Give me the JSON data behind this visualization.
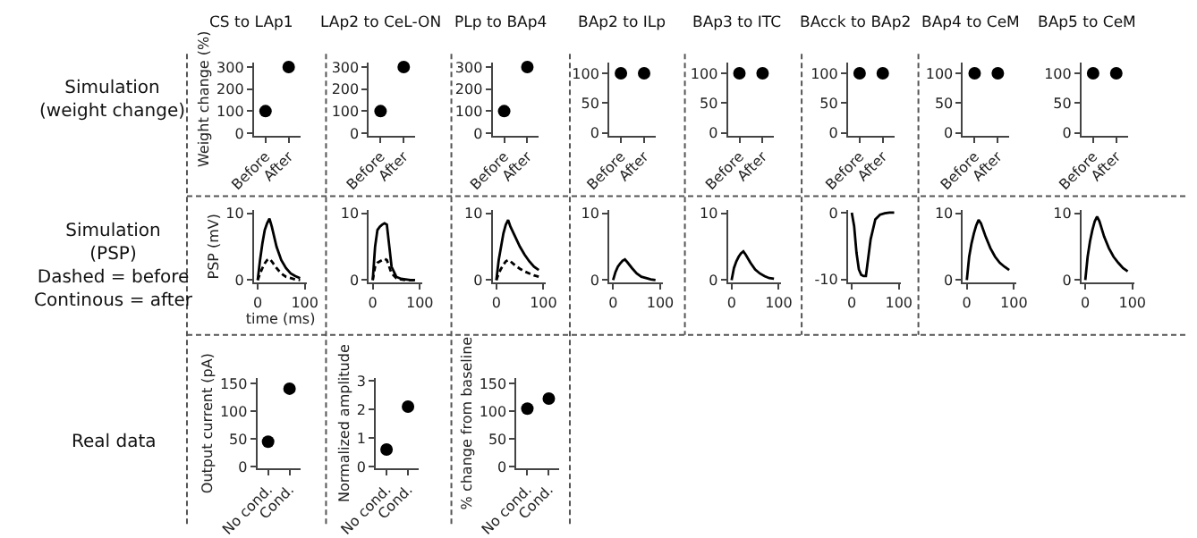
{
  "chart_data": [
    {
      "type": "scatter",
      "title": "CS to LAp1",
      "ylabel": "Weight change (%)",
      "annotations": [
        "Simulation\n(weight change)"
      ],
      "categories": [
        "Before",
        "After"
      ],
      "values": [
        100,
        300
      ],
      "color": "#000000",
      "marker": "circle",
      "ylim": [
        -10,
        320
      ],
      "yticks": [
        0,
        100,
        200,
        300
      ]
    },
    {
      "type": "scatter",
      "title": "LAp2 to CeL-ON",
      "categories": [
        "Before",
        "After"
      ],
      "values": [
        100,
        300
      ],
      "color": "#000000",
      "marker": "circle",
      "ylim": [
        -10,
        320
      ],
      "yticks": [
        0,
        100,
        200,
        300
      ]
    },
    {
      "type": "scatter",
      "title": "PLp to BAp4",
      "categories": [
        "Before",
        "After"
      ],
      "values": [
        100,
        300
      ],
      "color": "#000000",
      "marker": "circle",
      "ylim": [
        -10,
        320
      ],
      "yticks": [
        0,
        100,
        200,
        300
      ]
    },
    {
      "type": "scatter",
      "title": "BAp2 to ILp",
      "categories": [
        "Before",
        "After"
      ],
      "values": [
        100,
        100
      ],
      "color": "#000000",
      "marker": "circle",
      "ylim": [
        -4,
        118
      ],
      "yticks": [
        0,
        50,
        100
      ]
    },
    {
      "type": "scatter",
      "title": "BAp3 to ITC",
      "categories": [
        "Before",
        "After"
      ],
      "values": [
        100,
        100
      ],
      "color": "#000000",
      "marker": "circle",
      "ylim": [
        -4,
        118
      ],
      "yticks": [
        0,
        50,
        100
      ]
    },
    {
      "type": "scatter",
      "title": "BAcck to BAp2",
      "categories": [
        "Before",
        "After"
      ],
      "values": [
        100,
        100
      ],
      "color": "#000000",
      "marker": "circle",
      "ylim": [
        -4,
        118
      ],
      "yticks": [
        0,
        50,
        100
      ]
    },
    {
      "type": "scatter",
      "title": "BAp4 to CeM",
      "categories": [
        "Before",
        "After"
      ],
      "values": [
        100,
        100
      ],
      "color": "#000000",
      "marker": "circle",
      "ylim": [
        -4,
        118
      ],
      "yticks": [
        0,
        50,
        100
      ]
    },
    {
      "type": "scatter",
      "title": "BAp5 to CeM",
      "categories": [
        "Before",
        "After"
      ],
      "values": [
        100,
        100
      ],
      "color": "#000000",
      "marker": "circle",
      "ylim": [
        -4,
        118
      ],
      "yticks": [
        0,
        50,
        100
      ]
    },
    {
      "type": "line",
      "ylabel": "PSP (mV)",
      "xlabel": "time (ms)",
      "annotations": [
        "Simulation\n(PSP)\nDashed = before\nContinous = after"
      ],
      "x": [
        0,
        5,
        10,
        15,
        20,
        25,
        30,
        40,
        50,
        60,
        70,
        80,
        90
      ],
      "xlim": [
        -8,
        105
      ],
      "xticks": [
        0,
        100
      ],
      "ylim": [
        -0.4,
        10.5
      ],
      "yticks": [
        0,
        10
      ],
      "series": [
        {
          "color": "#000000",
          "line_style": "solid",
          "values": [
            0,
            3,
            5.5,
            7.5,
            8.5,
            9.2,
            8,
            5,
            3,
            1.8,
            1,
            0.6,
            0.3
          ]
        },
        {
          "color": "#000000",
          "line_style": "dashed",
          "values": [
            0,
            1,
            1.8,
            2.5,
            3,
            3.2,
            2.8,
            1.8,
            1,
            0.5,
            0.3,
            0.1,
            0
          ]
        }
      ]
    },
    {
      "type": "line",
      "x": [
        0,
        5,
        10,
        15,
        20,
        25,
        30,
        40,
        50,
        60,
        70,
        80,
        90
      ],
      "xlim": [
        -8,
        105
      ],
      "xticks": [
        0,
        100
      ],
      "ylim": [
        -0.4,
        10.5
      ],
      "yticks": [
        0,
        10
      ],
      "series": [
        {
          "color": "#000000",
          "line_style": "solid",
          "values": [
            0,
            5,
            7.5,
            8,
            8.3,
            8.5,
            8.3,
            2,
            0.5,
            0.2,
            0.1,
            0,
            0
          ]
        },
        {
          "color": "#000000",
          "line_style": "dashed",
          "values": [
            0,
            2,
            2.6,
            2.8,
            3,
            3.2,
            3,
            1,
            0.3,
            0.1,
            0,
            0,
            0
          ]
        }
      ]
    },
    {
      "type": "line",
      "x": [
        0,
        5,
        10,
        15,
        20,
        25,
        30,
        40,
        50,
        60,
        70,
        80,
        90
      ],
      "xlim": [
        -8,
        105
      ],
      "xticks": [
        0,
        100
      ],
      "ylim": [
        -0.4,
        10.5
      ],
      "yticks": [
        0,
        10
      ],
      "series": [
        {
          "color": "#000000",
          "line_style": "solid",
          "values": [
            0,
            3,
            5,
            7,
            8.3,
            9,
            8,
            6.5,
            5,
            3.8,
            2.8,
            2,
            1.5
          ]
        },
        {
          "color": "#000000",
          "line_style": "dashed",
          "values": [
            0,
            1,
            1.7,
            2.3,
            2.8,
            3,
            2.8,
            2.2,
            1.7,
            1.3,
            1,
            0.7,
            0.5
          ]
        }
      ]
    },
    {
      "type": "line",
      "x": [
        0,
        5,
        10,
        15,
        20,
        25,
        30,
        40,
        50,
        60,
        70,
        80,
        90
      ],
      "xlim": [
        -8,
        105
      ],
      "xticks": [
        0,
        100
      ],
      "ylim": [
        -0.4,
        10.5
      ],
      "yticks": [
        0,
        10
      ],
      "series": [
        {
          "color": "#000000",
          "line_style": "solid",
          "values": [
            0,
            1.2,
            2,
            2.5,
            2.9,
            3.1,
            2.7,
            1.8,
            1,
            0.5,
            0.3,
            0.1,
            0
          ]
        }
      ]
    },
    {
      "type": "line",
      "x": [
        0,
        5,
        10,
        15,
        20,
        25,
        30,
        40,
        50,
        60,
        70,
        80,
        90
      ],
      "xlim": [
        -8,
        105
      ],
      "xticks": [
        0,
        100
      ],
      "ylim": [
        -0.4,
        10.5
      ],
      "yticks": [
        0,
        10
      ],
      "series": [
        {
          "color": "#000000",
          "line_style": "solid",
          "values": [
            0,
            1.8,
            2.8,
            3.5,
            4,
            4.3,
            3.8,
            2.6,
            1.6,
            1,
            0.6,
            0.3,
            0.2
          ]
        }
      ]
    },
    {
      "type": "line",
      "x": [
        0,
        5,
        10,
        15,
        20,
        25,
        30,
        40,
        50,
        60,
        70,
        80,
        90
      ],
      "xlim": [
        -8,
        105
      ],
      "xticks": [
        0,
        100
      ],
      "ylim": [
        -10.5,
        0.4
      ],
      "yticks": [
        -10,
        0
      ],
      "series": [
        {
          "color": "#000000",
          "line_style": "solid",
          "values": [
            0,
            -2,
            -6,
            -8.5,
            -9.3,
            -9.5,
            -9.5,
            -4,
            -1,
            -0.3,
            -0.1,
            0,
            0
          ]
        }
      ]
    },
    {
      "type": "line",
      "x": [
        0,
        5,
        10,
        15,
        20,
        25,
        30,
        40,
        50,
        60,
        70,
        80,
        90
      ],
      "xlim": [
        -8,
        105
      ],
      "xticks": [
        0,
        100
      ],
      "ylim": [
        -0.4,
        10.5
      ],
      "yticks": [
        0,
        10
      ],
      "series": [
        {
          "color": "#000000",
          "line_style": "solid",
          "values": [
            0,
            3.5,
            5.5,
            7,
            8.2,
            9,
            8.5,
            6.5,
            4.8,
            3.5,
            2.6,
            2,
            1.5
          ]
        }
      ]
    },
    {
      "type": "line",
      "x": [
        0,
        5,
        10,
        15,
        20,
        25,
        30,
        40,
        50,
        60,
        70,
        80,
        90
      ],
      "xlim": [
        -8,
        105
      ],
      "xticks": [
        0,
        100
      ],
      "ylim": [
        -0.4,
        10.5
      ],
      "yticks": [
        0,
        10
      ],
      "series": [
        {
          "color": "#000000",
          "line_style": "solid",
          "values": [
            0,
            3.5,
            5.8,
            7.5,
            8.8,
            9.5,
            8.8,
            6.5,
            4.8,
            3.5,
            2.6,
            1.8,
            1.3
          ]
        }
      ]
    },
    {
      "type": "scatter",
      "ylabel": "Output current (pA)",
      "annotations": [
        "Real data"
      ],
      "categories": [
        "No cond.",
        "Cond."
      ],
      "values": [
        45,
        141
      ],
      "color": "#000000",
      "marker": "circle",
      "ylim": [
        -3,
        160
      ],
      "yticks": [
        0,
        50,
        100,
        150
      ]
    },
    {
      "type": "scatter",
      "ylabel": "Normalized amplitude",
      "categories": [
        "No cond.",
        "Cond."
      ],
      "values": [
        0.6,
        2.1
      ],
      "color": "#000000",
      "marker": "circle",
      "ylim": [
        -0.06,
        3.1
      ],
      "yticks": [
        0,
        1,
        2,
        3
      ]
    },
    {
      "type": "scatter",
      "ylabel": "% change from baseline",
      "categories": [
        "No cond.",
        "Cond."
      ],
      "values": [
        105,
        123
      ],
      "color": "#000000",
      "marker": "circle",
      "ylim": [
        -3,
        160
      ],
      "yticks": [
        0,
        50,
        100,
        150
      ]
    }
  ]
}
